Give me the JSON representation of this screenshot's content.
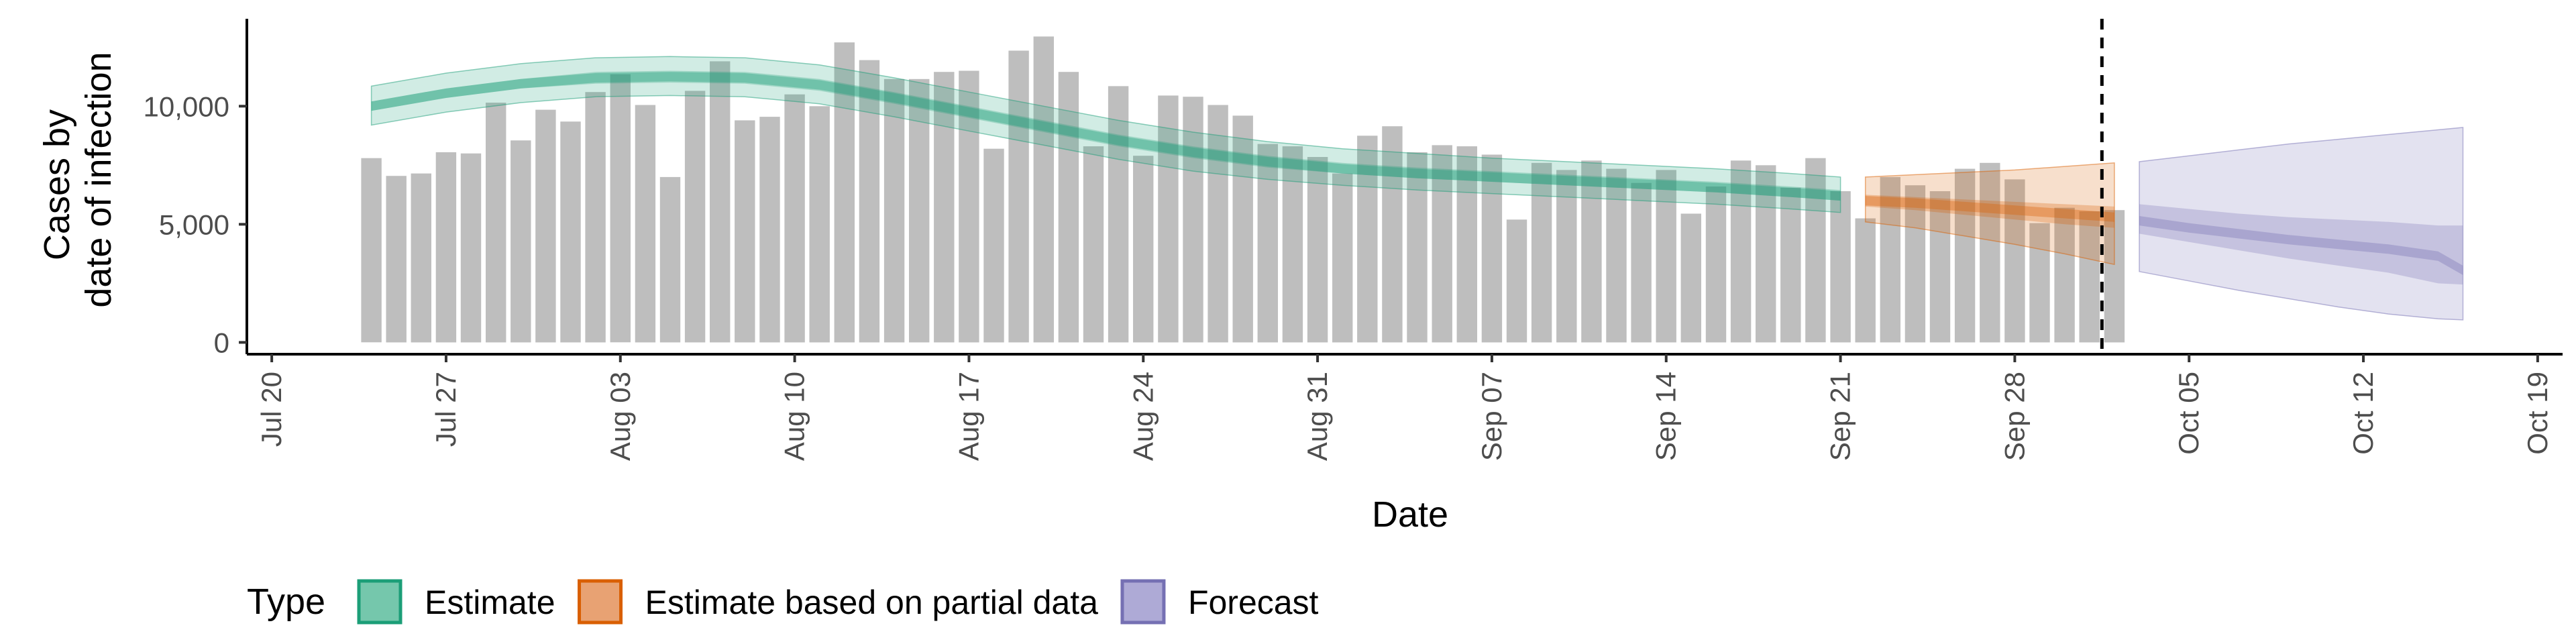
{
  "chart_data": {
    "type": "bar",
    "title": "",
    "ylabel": [
      "Cases by",
      "date of infection"
    ],
    "xlabel": "Date",
    "ylim": [
      -500,
      13700
    ],
    "y_ticks": [
      0,
      5000,
      10000
    ],
    "y_tick_labels": [
      "0",
      "5,000",
      "10,000"
    ],
    "x_ticks": [
      "2020-07-20",
      "2020-07-27",
      "2020-08-03",
      "2020-08-10",
      "2020-08-17",
      "2020-08-24",
      "2020-08-31",
      "2020-09-07",
      "2020-09-14",
      "2020-09-21",
      "2020-09-28",
      "2020-10-05",
      "2020-10-12",
      "2020-10-19"
    ],
    "x_tick_labels": [
      "Jul 20",
      "Jul 27",
      "Aug 03",
      "Aug 10",
      "Aug 17",
      "Aug 24",
      "Aug 31",
      "Sep 07",
      "Sep 14",
      "Sep 21",
      "Sep 28",
      "Oct 05",
      "Oct 12",
      "Oct 19"
    ],
    "xlim": [
      "2020-07-19",
      "2020-10-20"
    ],
    "forecast_date": "2020-10-02",
    "grid": false,
    "legend_position": "bottom",
    "bars": {
      "color": "#bebebe",
      "start_date": "2020-07-24",
      "values": [
        7800,
        7050,
        7150,
        8050,
        8000,
        10150,
        8550,
        9850,
        9350,
        10600,
        11350,
        10050,
        7000,
        10650,
        11900,
        9400,
        9550,
        10500,
        10000,
        12700,
        11950,
        11150,
        11150,
        11450,
        11500,
        8200,
        12350,
        12950,
        11450,
        8300,
        10850,
        7900,
        10450,
        10400,
        10050,
        9600,
        8400,
        8300,
        7850,
        7150,
        8750,
        9150,
        8050,
        8350,
        8300,
        7950,
        5200,
        7600,
        7300,
        7700,
        7350,
        6750,
        7300,
        5450,
        6600,
        7700,
        7500,
        6550,
        7800,
        6400,
        5250,
        7000,
        6650,
        6400,
        7350,
        7600,
        6900,
        5050,
        5700,
        5550,
        5600
      ]
    },
    "series": [
      {
        "name": "Estimate",
        "color": "#1b9e77",
        "x": [
          "2020-07-24",
          "2020-07-27",
          "2020-07-30",
          "2020-08-02",
          "2020-08-05",
          "2020-08-08",
          "2020-08-11",
          "2020-08-14",
          "2020-08-17",
          "2020-08-20",
          "2020-08-23",
          "2020-08-26",
          "2020-08-29",
          "2020-09-01",
          "2020-09-04",
          "2020-09-07",
          "2020-09-10",
          "2020-09-13",
          "2020-09-16",
          "2020-09-19",
          "2020-09-21"
        ],
        "median": [
          10000,
          10550,
          10950,
          11200,
          11250,
          11200,
          10900,
          10350,
          9750,
          9150,
          8550,
          8050,
          7650,
          7350,
          7150,
          7000,
          6850,
          6700,
          6550,
          6350,
          6200
        ],
        "lower_50": [
          9800,
          10350,
          10750,
          10950,
          11000,
          10950,
          10650,
          10100,
          9500,
          8900,
          8300,
          7800,
          7400,
          7150,
          6950,
          6800,
          6650,
          6500,
          6350,
          6150,
          6000
        ],
        "upper_50": [
          10200,
          10750,
          11150,
          11450,
          11500,
          11450,
          11150,
          10600,
          10000,
          9400,
          8800,
          8300,
          7900,
          7600,
          7400,
          7250,
          7100,
          6950,
          6800,
          6600,
          6450
        ],
        "lower_90": [
          9200,
          9750,
          10150,
          10400,
          10450,
          10400,
          10100,
          9550,
          8950,
          8350,
          7750,
          7250,
          6900,
          6650,
          6450,
          6300,
          6150,
          6000,
          5850,
          5650,
          5500
        ],
        "upper_90": [
          10850,
          11400,
          11800,
          12050,
          12100,
          12050,
          11750,
          11200,
          10600,
          10000,
          9400,
          8900,
          8500,
          8200,
          8000,
          7800,
          7650,
          7500,
          7350,
          7150,
          7000
        ]
      },
      {
        "name": "Estimate based on partial data",
        "color": "#d95f02",
        "x": [
          "2020-09-22",
          "2020-09-24",
          "2020-09-26",
          "2020-09-28",
          "2020-09-30",
          "2020-10-02"
        ],
        "median": [
          6000,
          5900,
          5750,
          5600,
          5450,
          5300
        ],
        "lower_50": [
          5750,
          5600,
          5400,
          5200,
          5000,
          4850
        ],
        "upper_50": [
          6250,
          6150,
          6050,
          5950,
          5850,
          5750
        ],
        "lower_90": [
          5100,
          4850,
          4500,
          4150,
          3750,
          3300
        ],
        "upper_90": [
          7000,
          7100,
          7200,
          7300,
          7450,
          7600
        ]
      },
      {
        "name": "Forecast",
        "color": "#7570b3",
        "x": [
          "2020-10-03",
          "2020-10-05",
          "2020-10-07",
          "2020-10-09",
          "2020-10-11",
          "2020-10-13",
          "2020-10-15",
          "2020-10-16"
        ],
        "median": [
          5150,
          4850,
          4600,
          4350,
          4150,
          3950,
          3650,
          3050
        ],
        "lower_50": [
          4600,
          4250,
          3900,
          3550,
          3250,
          2950,
          2500,
          2450
        ],
        "upper_50": [
          5850,
          5650,
          5450,
          5300,
          5200,
          5100,
          4950,
          4950
        ],
        "lower_90": [
          3000,
          2600,
          2200,
          1850,
          1500,
          1200,
          1000,
          950
        ],
        "upper_90": [
          7650,
          7900,
          8150,
          8400,
          8600,
          8800,
          9000,
          9100
        ]
      }
    ],
    "legend": {
      "title": "Type",
      "items": [
        {
          "label": "Estimate",
          "fill": "#75c7ac",
          "stroke": "#1b9e77"
        },
        {
          "label": "Estimate based on partial data",
          "fill": "#e8a273",
          "stroke": "#d95f02"
        },
        {
          "label": "Forecast",
          "fill": "#aeaad6",
          "stroke": "#7570b3"
        }
      ]
    }
  }
}
